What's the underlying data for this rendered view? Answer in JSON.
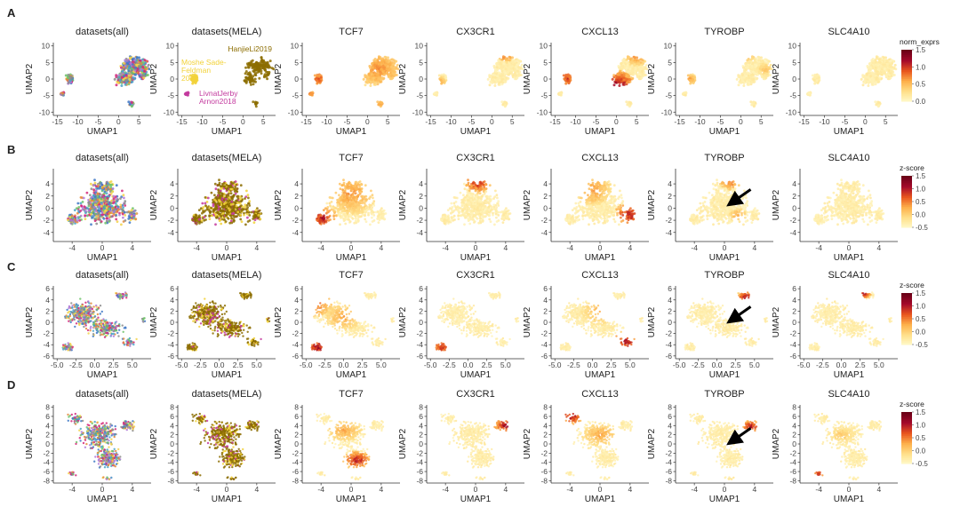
{
  "figure": {
    "colorscale": [
      "#fffacc",
      "#ffe08a",
      "#fdb04b",
      "#e8561e",
      "#a50a2b",
      "#6b0017"
    ],
    "dataset_colors": [
      "#d4287a",
      "#4aa6c8",
      "#6ec36a",
      "#b07ad8",
      "#e58a3b",
      "#f3d34a",
      "#3f78c6",
      "#8b8b8b"
    ],
    "mela_colors": [
      "#8c6d00",
      "#f2d23a",
      "#c33a9e"
    ]
  },
  "chart_data": [
    {
      "row": "A",
      "type": "scatter",
      "xlabel": "UMAP1",
      "ylabel": "UMAP2",
      "xticks": [
        "-15",
        "-10",
        "-5",
        "0",
        "5"
      ],
      "yticks": [
        "10",
        "5",
        "0",
        "-5",
        "-10"
      ],
      "xlim": [
        -16,
        8
      ],
      "ylim": [
        -11,
        11
      ],
      "panels": [
        "datasets(all)",
        "datasets(MELA)",
        "TCF7",
        "CX3CR1",
        "CXCL13",
        "TYROBP",
        "SLC4A10"
      ],
      "mela_labels": [
        "HanjieLi2019",
        "Moshe Sade-\nFeldman\n2018",
        "LivnatJerby\nArnon2018"
      ],
      "legend": {
        "title": "norm_exprs",
        "ticks": [
          "1.5",
          "1.0",
          "0.5",
          "0.0"
        ],
        "range": [
          0,
          1.5
        ]
      }
    },
    {
      "row": "B",
      "type": "scatter",
      "xlabel": "UMAP1",
      "ylabel": "UMAP2",
      "xticks": [
        "-4",
        "0",
        "4"
      ],
      "yticks": [
        "4",
        "2",
        "0",
        "-2",
        "-4"
      ],
      "xlim": [
        -6.5,
        6.5
      ],
      "ylim": [
        -5.5,
        6.5
      ],
      "panels": [
        "datasets(all)",
        "datasets(MELA)",
        "TCF7",
        "CX3CR1",
        "CXCL13",
        "TYROBP",
        "SLC4A10"
      ],
      "arrow_panel": "TYROBP",
      "legend": {
        "title": "z-score",
        "ticks": [
          "1.5",
          "1.0",
          "0.5",
          "0.0",
          "-0.5"
        ],
        "range": [
          -0.5,
          1.5
        ]
      }
    },
    {
      "row": "C",
      "type": "scatter",
      "xlabel": "UMAP1",
      "ylabel": "UMAP2",
      "xticks": [
        "-5.0",
        "-2.5",
        "0.0",
        "2.5",
        "5.0"
      ],
      "yticks": [
        "6",
        "4",
        "2",
        "0",
        "-2",
        "-4",
        "-6"
      ],
      "xlim": [
        -5.5,
        7.5
      ],
      "ylim": [
        -6.5,
        6.5
      ],
      "panels": [
        "datasets(all)",
        "datasets(MELA)",
        "TCF7",
        "CX3CR1",
        "CXCL13",
        "TYROBP",
        "SLC4A10"
      ],
      "arrow_panel": "TYROBP",
      "legend": {
        "title": "z-score",
        "ticks": [
          "1.5",
          "1.0",
          "0.5",
          "0.0",
          "-0.5"
        ],
        "range": [
          -0.5,
          1.5
        ]
      }
    },
    {
      "row": "D",
      "type": "scatter",
      "xlabel": "UMAP1",
      "ylabel": "UMAP2",
      "xticks": [
        "-4",
        "0",
        "4"
      ],
      "yticks": [
        "8",
        "6",
        "4",
        "2",
        "0",
        "-2",
        "-4",
        "-6",
        "-8"
      ],
      "xlim": [
        -6.5,
        6.5
      ],
      "ylim": [
        -8.5,
        8.5
      ],
      "panels": [
        "datasets(all)",
        "datasets(MELA)",
        "TCF7",
        "CX3CR1",
        "CXCL13",
        "TYROBP",
        "SLC4A10"
      ],
      "arrow_panel": "TYROBP",
      "legend": {
        "title": "z-score",
        "ticks": [
          "1.5",
          "1.0",
          "0.5",
          "0.0",
          "-0.5"
        ],
        "range": [
          -0.5,
          1.5
        ]
      }
    }
  ]
}
